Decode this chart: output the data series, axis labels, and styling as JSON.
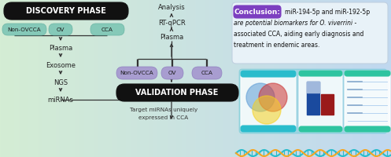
{
  "bg_left": "#d4edd4",
  "bg_right": "#c0d8f0",
  "discovery_text": "DISCOVERY PHASE",
  "validation_text": "VALIDATION PHASE",
  "conclusion_label_text": "Conclusion:",
  "conclusion_label_color": "#7c3fc0",
  "conclusion_box_color": "#e8f2f8",
  "conclusion_line1": "miR-194-5p and miR-192-5p",
  "conclusion_line2": "are potential biomarkers for O. viverrini -",
  "conclusion_line3": "associated CCA, aiding early diagnosis and",
  "conclusion_line4": "treatment in endemic areas.",
  "green_pill_color": "#85c9b8",
  "purple_pill_color": "#a89dd0",
  "discovery_pills": [
    "Non-OVCCA",
    "OV",
    "CCA"
  ],
  "validation_pills": [
    "Non-OVCCA",
    "OV",
    "CCA"
  ],
  "flow_left": [
    "Plasma",
    "Exosome",
    "NGS",
    "miRNAs"
  ],
  "flow_mid": [
    "Analysis",
    "RT-qPCR",
    "Plasma"
  ],
  "target_text1": "Target miRNAs uniquely",
  "target_text2": "expressed in CCA",
  "venn_colors": [
    "#5b9bd5",
    "#cc3333",
    "#f5d020"
  ],
  "bar_colors": [
    "#1a4a9e",
    "#8b1a1a",
    "#1a4a9e"
  ],
  "teal_color": "#2abccc",
  "dna_color1": "#2abccc",
  "dna_color2": "#f5a623",
  "arrow_color": "#333333"
}
